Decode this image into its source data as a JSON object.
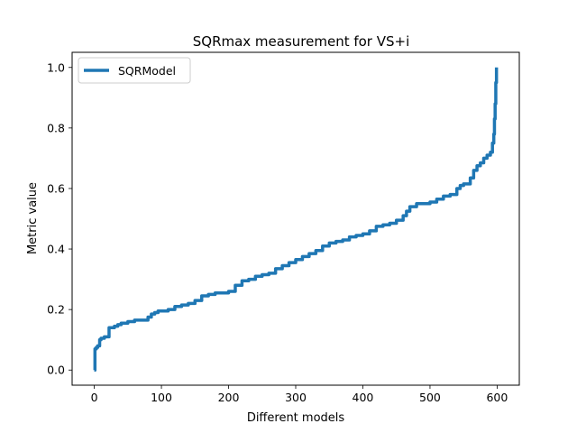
{
  "chart_data": {
    "type": "line",
    "title": "SQRmax measurement for VS+i",
    "xlabel": "Different models",
    "ylabel": "Metric value",
    "xlim": [
      -33,
      633
    ],
    "ylim": [
      -0.05,
      1.05
    ],
    "xticks": [
      0,
      100,
      200,
      300,
      400,
      500,
      600
    ],
    "yticks": [
      0.0,
      0.2,
      0.4,
      0.6,
      0.8,
      1.0
    ],
    "xtick_labels": [
      "0",
      "100",
      "200",
      "300",
      "400",
      "500",
      "600"
    ],
    "ytick_labels": [
      "0.0",
      "0.2",
      "0.4",
      "0.6",
      "0.8",
      "1.0"
    ],
    "grid": false,
    "legend_position": "upper-left",
    "series": [
      {
        "name": "SQRModel",
        "color": "#1f77b4",
        "x": [
          0,
          1,
          3,
          5,
          8,
          10,
          15,
          20,
          22,
          25,
          30,
          35,
          40,
          45,
          50,
          55,
          60,
          65,
          70,
          75,
          80,
          85,
          90,
          95,
          100,
          110,
          120,
          130,
          140,
          150,
          160,
          170,
          180,
          190,
          200,
          210,
          220,
          230,
          240,
          250,
          260,
          270,
          280,
          290,
          300,
          310,
          320,
          330,
          340,
          350,
          360,
          370,
          380,
          390,
          400,
          410,
          420,
          430,
          440,
          450,
          460,
          465,
          470,
          480,
          490,
          500,
          510,
          520,
          530,
          540,
          545,
          550,
          560,
          565,
          570,
          575,
          580,
          585,
          590,
          593,
          595,
          596,
          597,
          598,
          599
        ],
        "y": [
          0.0,
          0.07,
          0.075,
          0.08,
          0.1,
          0.105,
          0.11,
          0.11,
          0.14,
          0.14,
          0.145,
          0.15,
          0.155,
          0.155,
          0.16,
          0.16,
          0.165,
          0.165,
          0.165,
          0.165,
          0.175,
          0.185,
          0.19,
          0.195,
          0.195,
          0.2,
          0.21,
          0.215,
          0.22,
          0.23,
          0.245,
          0.25,
          0.255,
          0.255,
          0.26,
          0.28,
          0.295,
          0.3,
          0.31,
          0.315,
          0.32,
          0.335,
          0.345,
          0.355,
          0.365,
          0.375,
          0.385,
          0.395,
          0.41,
          0.42,
          0.425,
          0.43,
          0.44,
          0.445,
          0.45,
          0.46,
          0.475,
          0.48,
          0.485,
          0.495,
          0.51,
          0.525,
          0.54,
          0.55,
          0.55,
          0.555,
          0.565,
          0.575,
          0.58,
          0.6,
          0.61,
          0.615,
          0.635,
          0.66,
          0.675,
          0.685,
          0.7,
          0.71,
          0.72,
          0.75,
          0.78,
          0.83,
          0.88,
          0.95,
          1.0
        ]
      }
    ]
  }
}
